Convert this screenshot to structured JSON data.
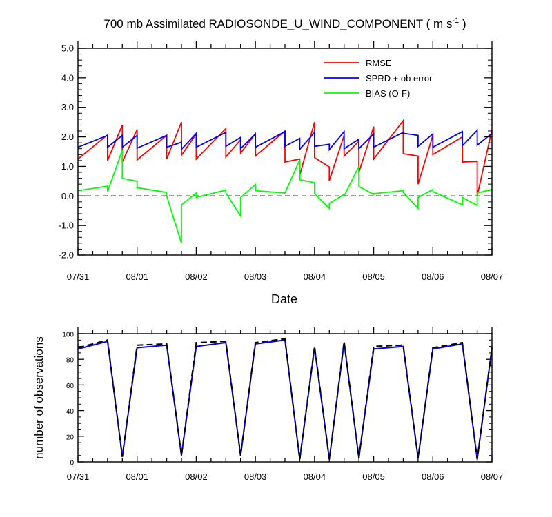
{
  "chart_data": [
    {
      "type": "line",
      "title": "700 mb Assimilated RADIOSONDE_U_WIND_COMPONENT ( m s",
      "title_sup": "-1",
      "title_end": " )",
      "xlabel": "Date",
      "ylabel": "",
      "xlim": [
        0,
        7
      ],
      "ylim": [
        -2.0,
        5.0
      ],
      "x_tick_labels": [
        "07/31",
        "08/01",
        "08/02",
        "08/03",
        "08/04",
        "08/05",
        "08/06",
        "08/07"
      ],
      "y_tick_labels": [
        "-2.0",
        "-1.0",
        "0.0",
        "1.0",
        "2.0",
        "3.0",
        "4.0",
        "5.0"
      ],
      "legend": {
        "position": "top-right"
      },
      "reference_line": {
        "y": 0,
        "style": "dashed"
      },
      "series": [
        {
          "name": "RMSE",
          "color": "#ff0000",
          "x": [
            0.0,
            0.5,
            0.5,
            0.75,
            0.75,
            1.0,
            1.0,
            1.5,
            1.5,
            1.75,
            1.75,
            2.0,
            2.0,
            2.5,
            2.5,
            2.75,
            2.75,
            3.0,
            3.0,
            3.5,
            3.5,
            3.75,
            3.75,
            4.0,
            4.0,
            4.25,
            4.25,
            4.5,
            4.5,
            4.75,
            4.75,
            5.0,
            5.0,
            5.5,
            5.5,
            5.75,
            5.75,
            6.0,
            6.0,
            6.5,
            6.5,
            6.75,
            6.75,
            7.0
          ],
          "values": [
            1.25,
            2.07,
            1.2,
            2.4,
            1.15,
            2.25,
            1.22,
            2.05,
            1.25,
            2.5,
            1.38,
            2.1,
            1.25,
            2.28,
            1.32,
            1.9,
            1.45,
            2.1,
            1.35,
            2.2,
            1.15,
            1.25,
            0.7,
            2.5,
            1.3,
            0.98,
            0.52,
            2.05,
            1.35,
            1.85,
            0.8,
            2.35,
            1.25,
            2.55,
            1.43,
            1.35,
            0.4,
            2.05,
            1.4,
            2.0,
            1.15,
            1.17,
            0.0,
            2.25
          ]
        },
        {
          "name": "SPRD + ob error",
          "color": "#0000ff",
          "x": [
            0.0,
            0.5,
            0.5,
            0.75,
            0.75,
            1.0,
            1.0,
            1.5,
            1.5,
            1.75,
            1.75,
            2.0,
            2.0,
            2.5,
            2.5,
            2.75,
            2.75,
            3.0,
            3.0,
            3.5,
            3.5,
            3.75,
            3.75,
            4.0,
            4.0,
            4.25,
            4.25,
            4.5,
            4.5,
            4.75,
            4.75,
            5.0,
            5.0,
            5.5,
            5.5,
            5.75,
            5.75,
            6.0,
            6.0,
            6.5,
            6.5,
            6.75,
            6.75,
            7.0
          ],
          "values": [
            1.65,
            2.05,
            1.65,
            2.05,
            1.65,
            2.05,
            1.62,
            2.05,
            1.65,
            1.82,
            1.58,
            2.12,
            1.65,
            2.15,
            1.68,
            1.98,
            1.6,
            2.1,
            1.65,
            2.18,
            1.68,
            1.95,
            1.58,
            2.15,
            1.68,
            1.75,
            1.57,
            2.18,
            1.6,
            1.92,
            1.6,
            2.1,
            1.65,
            2.15,
            2.12,
            2.05,
            1.68,
            2.1,
            1.65,
            2.18,
            1.7,
            2.22,
            1.72,
            2.12
          ]
        },
        {
          "name": "BIAS (O-F)",
          "color": "#00ff00",
          "x": [
            0.0,
            0.5,
            0.5,
            0.75,
            0.75,
            1.0,
            1.0,
            1.5,
            1.5,
            1.75,
            1.75,
            2.0,
            2.0,
            2.5,
            2.5,
            2.75,
            2.75,
            3.0,
            3.0,
            3.5,
            3.5,
            3.75,
            3.75,
            4.0,
            4.0,
            4.25,
            4.25,
            4.5,
            4.5,
            4.75,
            4.75,
            5.0,
            5.0,
            5.5,
            5.5,
            5.75,
            5.75,
            6.0,
            6.0,
            6.5,
            6.5,
            6.75,
            6.75,
            7.0
          ],
          "values": [
            0.18,
            0.33,
            0.15,
            1.55,
            0.6,
            0.5,
            0.28,
            0.12,
            0.0,
            -1.6,
            -0.3,
            0.1,
            -0.05,
            0.2,
            0.1,
            -0.68,
            -0.05,
            0.38,
            0.18,
            0.1,
            0.1,
            1.22,
            0.55,
            0.45,
            0.08,
            -0.42,
            -0.25,
            0.05,
            0.0,
            1.0,
            0.32,
            0.05,
            0.08,
            0.18,
            0.12,
            -0.42,
            -0.05,
            0.22,
            0.15,
            -0.3,
            -0.05,
            -0.32,
            0.1,
            0.22
          ]
        }
      ]
    },
    {
      "type": "line",
      "title": "",
      "xlabel": "",
      "ylabel": "number of observations",
      "xlim": [
        0,
        7
      ],
      "ylim": [
        0,
        100
      ],
      "x_tick_labels": [
        "07/31",
        "08/01",
        "08/02",
        "08/03",
        "08/04",
        "08/05",
        "08/06",
        "08/07"
      ],
      "y_tick_labels": [
        "0",
        "20",
        "40",
        "60",
        "80",
        "100"
      ],
      "series": [
        {
          "color": "#0000ff",
          "style": "solid",
          "x": [
            0.0,
            0.5,
            0.75,
            1.0,
            1.5,
            1.75,
            2.0,
            2.5,
            2.75,
            3.0,
            3.5,
            3.75,
            4.0,
            4.25,
            4.5,
            4.75,
            5.0,
            5.5,
            5.75,
            6.0,
            6.5,
            6.75,
            7.0
          ],
          "values": [
            88,
            94,
            4,
            89,
            91,
            5,
            90,
            93,
            5,
            92,
            95,
            2,
            89,
            2,
            93,
            3,
            88,
            90,
            3,
            88,
            92,
            2,
            89
          ]
        },
        {
          "color": "#000000",
          "style": "dashed",
          "x": [
            0.0,
            0.5,
            0.75,
            1.0,
            1.5,
            1.75,
            2.0,
            2.5,
            2.75,
            3.0,
            3.5,
            3.75,
            4.0,
            4.25,
            4.5,
            4.75,
            5.0,
            5.5,
            5.75,
            6.0,
            6.5,
            6.75,
            7.0
          ],
          "values": [
            89,
            95,
            4,
            91,
            92,
            5,
            93,
            94,
            5,
            93,
            96,
            2,
            90,
            2,
            94,
            3,
            90,
            91,
            3,
            89,
            93,
            2,
            89
          ]
        }
      ]
    }
  ]
}
